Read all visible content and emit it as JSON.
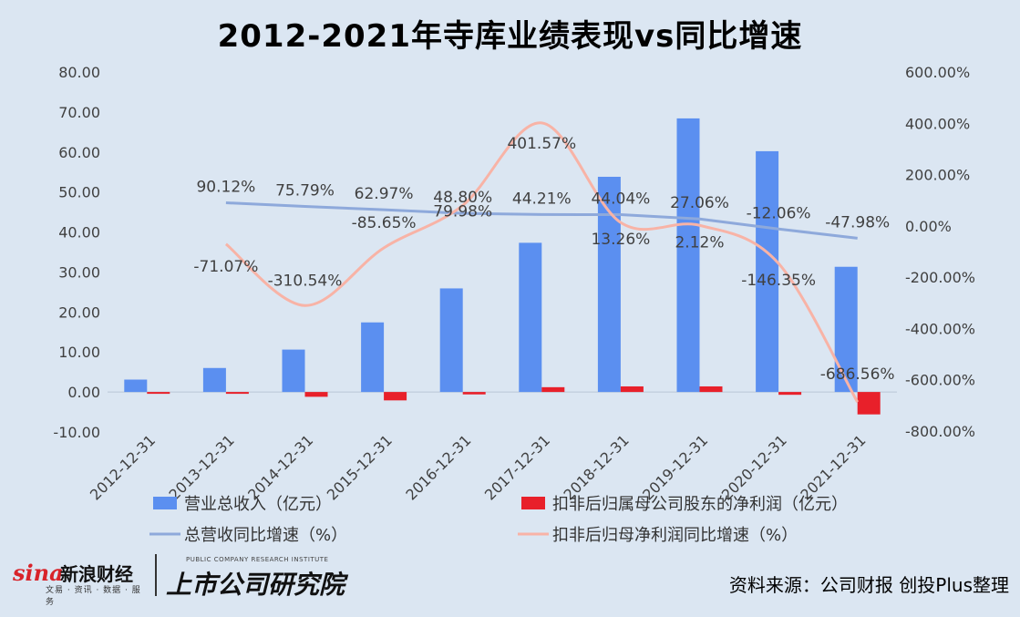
{
  "title": "2012-2021年寺库业绩表现vs同比增速",
  "source": "资料来源：公司财报 创投Plus整理",
  "logos": {
    "sina_word": "sina",
    "sina_cn": "新浪财经",
    "sina_sub": "文易 · 资讯 · 数据 · 服务",
    "ssri_en": "PUBLIC COMPANY RESEARCH INSTITUTE",
    "ssri_cn": "上市公司研究院"
  },
  "colors": {
    "revenue_bar": "#5b8ff0",
    "profit_bar": "#e8202a",
    "revenue_growth_line": "#8ea9db",
    "profit_growth_line": "#f8b3a6",
    "background": "#dbe6f2"
  },
  "chart_data": {
    "type": "bar",
    "categories": [
      "2012-12-31",
      "2013-12-31",
      "2014-12-31",
      "2015-12-31",
      "2016-12-31",
      "2017-12-31",
      "2018-12-31",
      "2019-12-31",
      "2020-12-31",
      "2021-12-31"
    ],
    "series": [
      {
        "name": "营业总收入（亿元）",
        "type": "bar",
        "axis": "left",
        "values": [
          3.1,
          6.0,
          10.6,
          17.4,
          25.9,
          37.3,
          53.8,
          68.4,
          60.2,
          31.3
        ]
      },
      {
        "name": "扣非后归属母公司股东的净利润（亿元）",
        "type": "bar",
        "axis": "left",
        "values": [
          -0.2,
          -0.3,
          -1.2,
          -2.1,
          -0.6,
          1.2,
          1.4,
          1.4,
          -0.7,
          -5.6
        ]
      },
      {
        "name": "总营收同比增速（%）",
        "type": "line",
        "axis": "right",
        "values": [
          null,
          90.12,
          75.79,
          62.97,
          48.8,
          44.21,
          44.04,
          27.06,
          -12.06,
          -47.98
        ],
        "labels": [
          "",
          "90.12%",
          "75.79%",
          "62.97%",
          "48.80%",
          "44.21%",
          "44.04%",
          "27.06%",
          "-12.06%",
          "-47.98%"
        ]
      },
      {
        "name": "扣非后归母净利润同比增速（%）",
        "type": "line",
        "axis": "right",
        "smooth": true,
        "values": [
          null,
          -71.07,
          -310.54,
          -85.65,
          79.98,
          401.57,
          13.26,
          2.12,
          -146.35,
          -686.56
        ],
        "labels": [
          "",
          "-71.07%",
          "-310.54%",
          "-85.65%",
          "79.98%",
          "401.57%",
          "13.26%",
          "2.12%",
          "-146.35%",
          "-686.56%"
        ]
      }
    ],
    "y_left": {
      "min": -10,
      "max": 80,
      "ticks": [
        "-10.00",
        "0.00",
        "10.00",
        "20.00",
        "30.00",
        "40.00",
        "50.00",
        "60.00",
        "70.00",
        "80.00"
      ]
    },
    "y_right": {
      "min": -800,
      "max": 600,
      "ticks": [
        "-800.00%",
        "-600.00%",
        "-400.00%",
        "-200.00%",
        "0.00%",
        "200.00%",
        "400.00%",
        "600.00%"
      ]
    },
    "grid": false,
    "legend_position": "bottom"
  }
}
